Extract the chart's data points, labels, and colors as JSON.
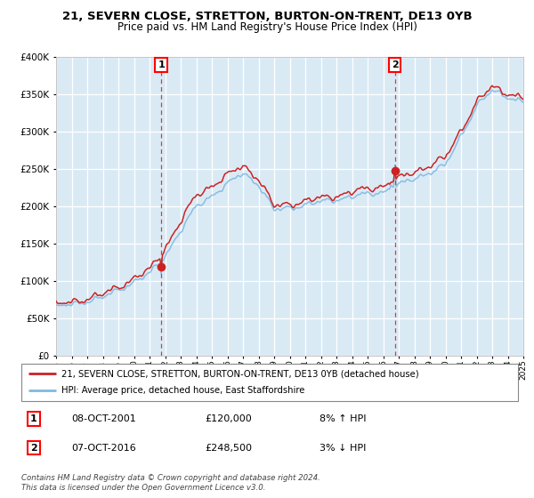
{
  "title": "21, SEVERN CLOSE, STRETTON, BURTON-ON-TRENT, DE13 0YB",
  "subtitle": "Price paid vs. HM Land Registry's House Price Index (HPI)",
  "legend_line1": "21, SEVERN CLOSE, STRETTON, BURTON-ON-TRENT, DE13 0YB (detached house)",
  "legend_line2": "HPI: Average price, detached house, East Staffordshire",
  "footnote": "Contains HM Land Registry data © Crown copyright and database right 2024.\nThis data is licensed under the Open Government Licence v3.0.",
  "purchase1_date": "08-OCT-2001",
  "purchase1_price": 120000,
  "purchase1_label": "8% ↑ HPI",
  "purchase2_date": "07-OCT-2016",
  "purchase2_price": 248500,
  "purchase2_label": "3% ↓ HPI",
  "hpi_color": "#7fb9e0",
  "price_color": "#cc2222",
  "vline_color": "#cc2222",
  "bg_color": "#daeaf5",
  "grid_color": "#ffffff",
  "ylim": [
    0,
    400000
  ],
  "start_year": 1995,
  "end_year": 2025
}
